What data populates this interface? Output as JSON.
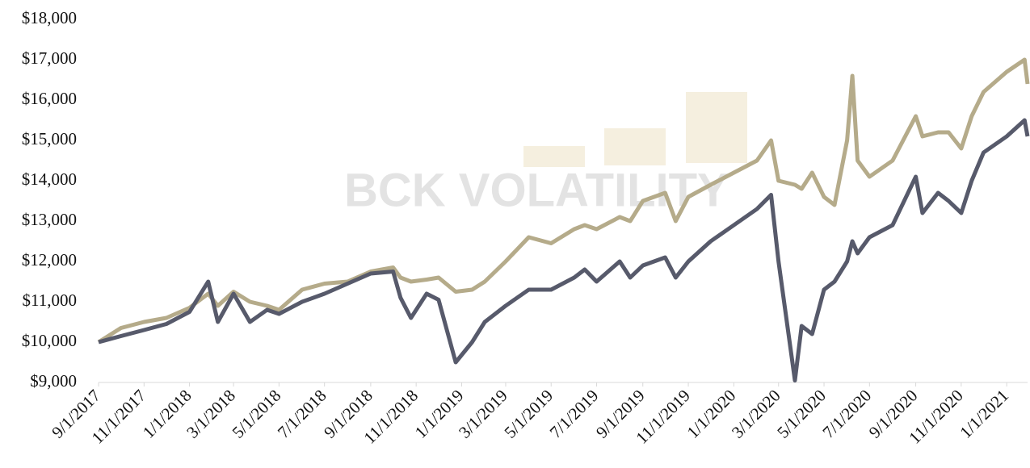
{
  "chart_data": {
    "type": "line",
    "annotation": "BCK VOLATILITY",
    "x": [
      "9/1/2017",
      "10/1/2017",
      "11/1/2017",
      "12/1/2017",
      "1/1/2018",
      "1/26/2018",
      "2/8/2018",
      "3/1/2018",
      "3/23/2018",
      "4/15/2018",
      "5/1/2018",
      "6/1/2018",
      "7/1/2018",
      "8/1/2018",
      "9/1/2018",
      "10/1/2018",
      "10/11/2018",
      "10/25/2018",
      "11/15/2018",
      "12/1/2018",
      "12/24/2018",
      "1/15/2019",
      "2/1/2019",
      "3/1/2019",
      "4/1/2019",
      "5/1/2019",
      "6/1/2019",
      "6/15/2019",
      "7/1/2019",
      "8/1/2019",
      "8/15/2019",
      "9/1/2019",
      "10/1/2019",
      "10/15/2019",
      "11/1/2019",
      "12/1/2019",
      "1/1/2020",
      "2/1/2020",
      "2/20/2020",
      "3/1/2020",
      "3/23/2020",
      "4/1/2020",
      "4/15/2020",
      "5/1/2020",
      "5/15/2020",
      "6/1/2020",
      "6/8/2020",
      "6/15/2020",
      "7/1/2020",
      "8/1/2020",
      "9/1/2020",
      "9/10/2020",
      "10/1/2020",
      "10/15/2020",
      "11/1/2020",
      "11/15/2020",
      "12/1/2020",
      "1/1/2021",
      "1/25/2021",
      "1/29/2021"
    ],
    "series": [
      {
        "color": "#b5ab8a",
        "values": [
          10000,
          10350,
          10500,
          10600,
          10850,
          11200,
          10900,
          11250,
          11000,
          10900,
          10800,
          11300,
          11450,
          11500,
          11750,
          11850,
          11600,
          11500,
          11550,
          11600,
          11250,
          11300,
          11500,
          12000,
          12600,
          12450,
          12800,
          12900,
          12800,
          13100,
          13000,
          13500,
          13700,
          13000,
          13600,
          13900,
          14200,
          14500,
          15000,
          14000,
          13900,
          13800,
          14200,
          13600,
          13400,
          15000,
          16600,
          14500,
          14100,
          14500,
          15600,
          15100,
          15200,
          15200,
          14800,
          15600,
          16200,
          16700,
          17000,
          16400
        ]
      },
      {
        "color": "#575a6b",
        "values": [
          10000,
          10150,
          10300,
          10450,
          10750,
          11500,
          10500,
          11200,
          10500,
          10800,
          10700,
          11000,
          11200,
          11450,
          11700,
          11750,
          11100,
          10600,
          11200,
          11050,
          9500,
          10000,
          10500,
          10900,
          11300,
          11300,
          11600,
          11800,
          11500,
          12000,
          11600,
          11900,
          12100,
          11600,
          12000,
          12500,
          12900,
          13300,
          13650,
          12000,
          9050,
          10400,
          10200,
          11300,
          11500,
          12000,
          12500,
          12200,
          12600,
          12900,
          14100,
          13200,
          13700,
          13500,
          13200,
          14000,
          14700,
          15100,
          15500,
          15100
        ]
      }
    ],
    "xlim": [
      "9/1/2017",
      "1/29/2021"
    ],
    "xticks": [
      "9/1/2017",
      "11/1/2017",
      "1/1/2018",
      "3/1/2018",
      "5/1/2018",
      "7/1/2018",
      "9/1/2018",
      "11/1/2018",
      "1/1/2019",
      "3/1/2019",
      "5/1/2019",
      "7/1/2019",
      "9/1/2019",
      "11/1/2019",
      "1/1/2020",
      "3/1/2020",
      "5/1/2020",
      "7/1/2020",
      "9/1/2020",
      "11/1/2020",
      "1/1/2021"
    ],
    "ylim": [
      9000,
      18000
    ],
    "yticks": [
      {
        "value": 9000,
        "label": "$9,000"
      },
      {
        "value": 10000,
        "label": "$10,000"
      },
      {
        "value": 11000,
        "label": "$11,000"
      },
      {
        "value": 12000,
        "label": "$12,000"
      },
      {
        "value": 13000,
        "label": "$13,000"
      },
      {
        "value": 14000,
        "label": "$14,000"
      },
      {
        "value": 15000,
        "label": "$15,000"
      },
      {
        "value": 16000,
        "label": "$16,000"
      },
      {
        "value": 17000,
        "label": "$17,000"
      },
      {
        "value": 18000,
        "label": "$18,000"
      }
    ],
    "grid": false
  }
}
